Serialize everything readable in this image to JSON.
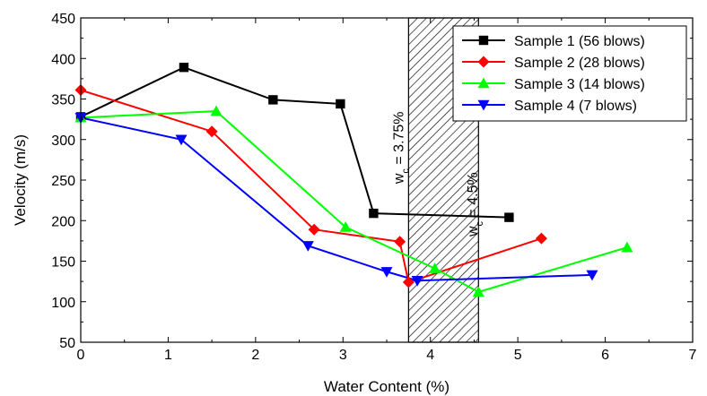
{
  "chart_data": {
    "type": "line",
    "xlabel": "Water Content (%)",
    "ylabel": "Velocity (m/s)",
    "xlim": [
      0,
      7
    ],
    "ylim": [
      50,
      450
    ],
    "xticks": [
      0,
      1,
      2,
      3,
      4,
      5,
      6,
      7
    ],
    "yticks": [
      50,
      100,
      150,
      200,
      250,
      300,
      350,
      400,
      450
    ],
    "grid": false,
    "legend_position": "top-right",
    "series": [
      {
        "name": "Sample 1 (56 blows)",
        "color": "#000000",
        "marker": "square",
        "x": [
          0,
          1.18,
          2.2,
          2.97,
          3.35,
          4.9
        ],
        "y": [
          328,
          389,
          349,
          344,
          209,
          204
        ]
      },
      {
        "name": "Sample 2 (28 blows)",
        "color": "#ff0000",
        "marker": "diamond",
        "x": [
          0,
          1.5,
          2.67,
          3.65,
          3.75,
          5.27
        ],
        "y": [
          361,
          310,
          189,
          174,
          124,
          178
        ]
      },
      {
        "name": "Sample 3 (14 blows)",
        "color": "#00ff00",
        "marker": "triangle-up",
        "x": [
          0,
          1.55,
          3.03,
          4.05,
          4.55,
          6.25
        ],
        "y": [
          327,
          335,
          192,
          141,
          112,
          167
        ]
      },
      {
        "name": "Sample 4 (7 blows)",
        "color": "#0000ff",
        "marker": "triangle-down",
        "x": [
          0,
          1.15,
          2.6,
          3.5,
          3.85,
          5.85
        ],
        "y": [
          327,
          300,
          169,
          137,
          126,
          133
        ]
      }
    ],
    "shaded_region": {
      "x_start": 3.75,
      "x_end": 4.55,
      "pattern": "hatch"
    },
    "annotations": [
      {
        "text_main": "w",
        "text_sub": "c",
        "text_rest": " = 3.75%",
        "x": 3.75,
        "y": 290
      },
      {
        "text_main": "w",
        "text_sub": "c",
        "text_rest": " = 4.5%",
        "x": 4.6,
        "y": 220
      }
    ]
  }
}
